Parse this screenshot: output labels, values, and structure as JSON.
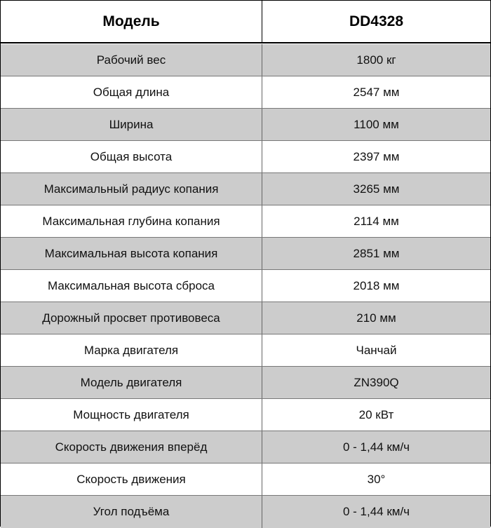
{
  "header": {
    "col1": "Модель",
    "col2": "DD4328"
  },
  "colors": {
    "row_alt": "#cccccc",
    "border": "#000000"
  },
  "rows": [
    {
      "label": "Рабочий вес",
      "value": "1800 кг"
    },
    {
      "label": "Общая длина",
      "value": "2547 мм"
    },
    {
      "label": "Ширина",
      "value": "1100 мм"
    },
    {
      "label": "Общая высота",
      "value": "2397 мм"
    },
    {
      "label": "Максимальный радиус копания",
      "value": "3265 мм"
    },
    {
      "label": "Максимальная глубина копания",
      "value": "2114 мм"
    },
    {
      "label": "Максимальная высота копания",
      "value": "2851 мм"
    },
    {
      "label": "Максимальная высота сброса",
      "value": "2018 мм"
    },
    {
      "label": "Дорожный просвет противовеса",
      "value": "210 мм"
    },
    {
      "label": "Марка двигателя",
      "value": "Чанчай"
    },
    {
      "label": "Модель двигателя",
      "value": "ZN390Q"
    },
    {
      "label": "Мощность двигателя",
      "value": "20 кВт"
    },
    {
      "label": "Скорость движения вперёд",
      "value": "0 - 1,44 км/ч"
    },
    {
      "label": "Скорость движения",
      "value": "30°"
    },
    {
      "label": "Угол подъёма",
      "value": "0 - 1,44 км/ч"
    }
  ]
}
